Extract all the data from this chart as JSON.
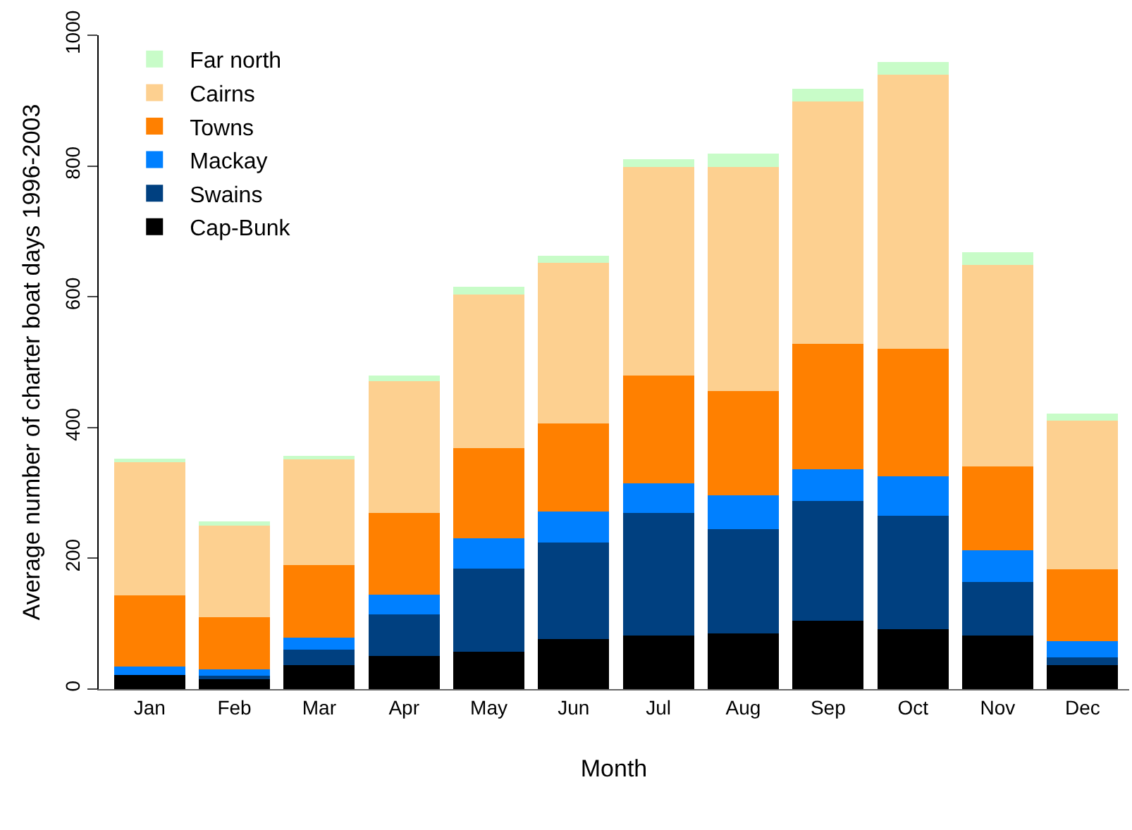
{
  "chart_data": {
    "type": "bar",
    "stacked": true,
    "xlabel": "Month",
    "ylabel": "Average number of charter boat days 1996-2003",
    "categories": [
      "Jan",
      "Feb",
      "Mar",
      "Apr",
      "May",
      "Jun",
      "Jul",
      "Aug",
      "Sep",
      "Oct",
      "Nov",
      "Dec"
    ],
    "series": [
      {
        "name": "Cap-Bunk",
        "color": "#000000",
        "values": [
          22,
          16,
          37,
          51,
          57,
          76,
          82,
          85,
          105,
          92,
          82,
          37
        ]
      },
      {
        "name": "Swains",
        "color": "#004080",
        "values": [
          null,
          4,
          23,
          63,
          127,
          148,
          187,
          160,
          183,
          173,
          82,
          11
        ]
      },
      {
        "name": "Mackay",
        "color": "#0080ff",
        "values": [
          13,
          10,
          19,
          30,
          47,
          48,
          46,
          51,
          48,
          60,
          48,
          25
        ]
      },
      {
        "name": "Towns",
        "color": "#ff8000",
        "values": [
          108,
          80,
          111,
          125,
          138,
          134,
          165,
          160,
          192,
          195,
          128,
          110
        ]
      },
      {
        "name": "Cairns",
        "color": "#fdd090",
        "values": [
          204,
          142,
          163,
          202,
          234,
          246,
          318,
          342,
          371,
          420,
          309,
          228
        ]
      },
      {
        "name": "Far north",
        "color": "#c8fcc8",
        "values": [
          5,
          4,
          4,
          8,
          12,
          11,
          12,
          21,
          19,
          19,
          19,
          10
        ]
      }
    ],
    "ylim": [
      0,
      1000
    ],
    "yticks": [
      0,
      200,
      400,
      600,
      800,
      1000
    ],
    "legend": "top left"
  }
}
